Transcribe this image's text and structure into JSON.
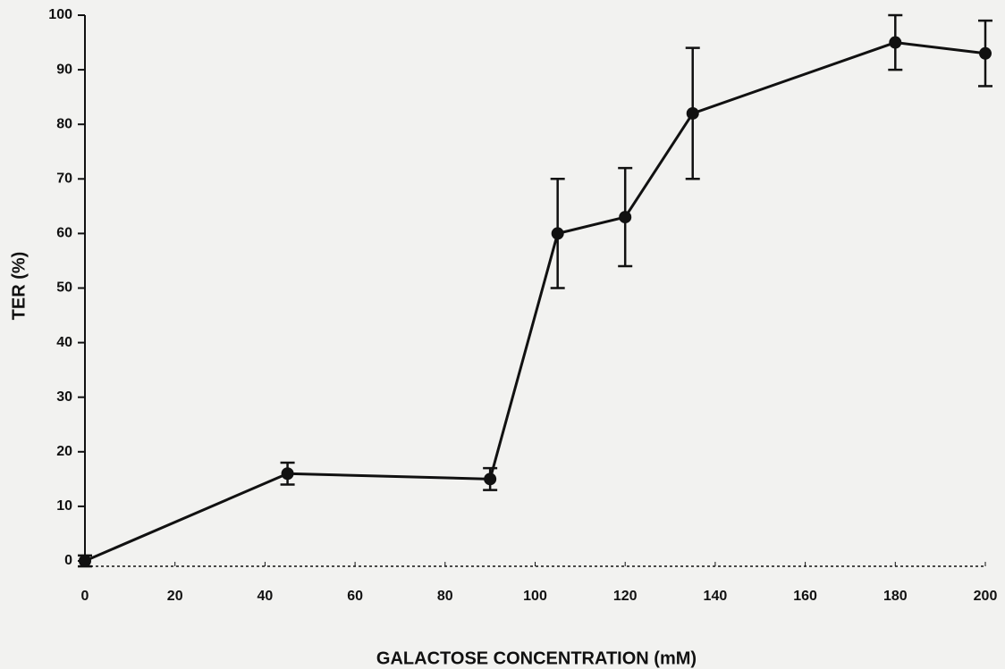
{
  "chart_data": {
    "type": "line",
    "x_label": "GALACTOSE CONCENTRATION (mM)",
    "y_label": "TER (%)",
    "x": [
      0,
      45,
      90,
      105,
      120,
      135,
      180,
      200
    ],
    "series": [
      {
        "color": "#111111",
        "values": [
          0,
          16,
          15,
          60,
          63,
          82,
          95,
          93
        ],
        "errors": [
          1,
          2,
          2,
          10,
          9,
          12,
          5,
          6
        ]
      }
    ],
    "xlim": [
      0,
      200
    ],
    "xticks": [
      0,
      20,
      40,
      60,
      80,
      100,
      120,
      140,
      160,
      180,
      200
    ],
    "ylim": [
      0,
      100
    ],
    "yticks": [
      0,
      10,
      20,
      30,
      40,
      50,
      60,
      70,
      80,
      90,
      100
    ]
  }
}
